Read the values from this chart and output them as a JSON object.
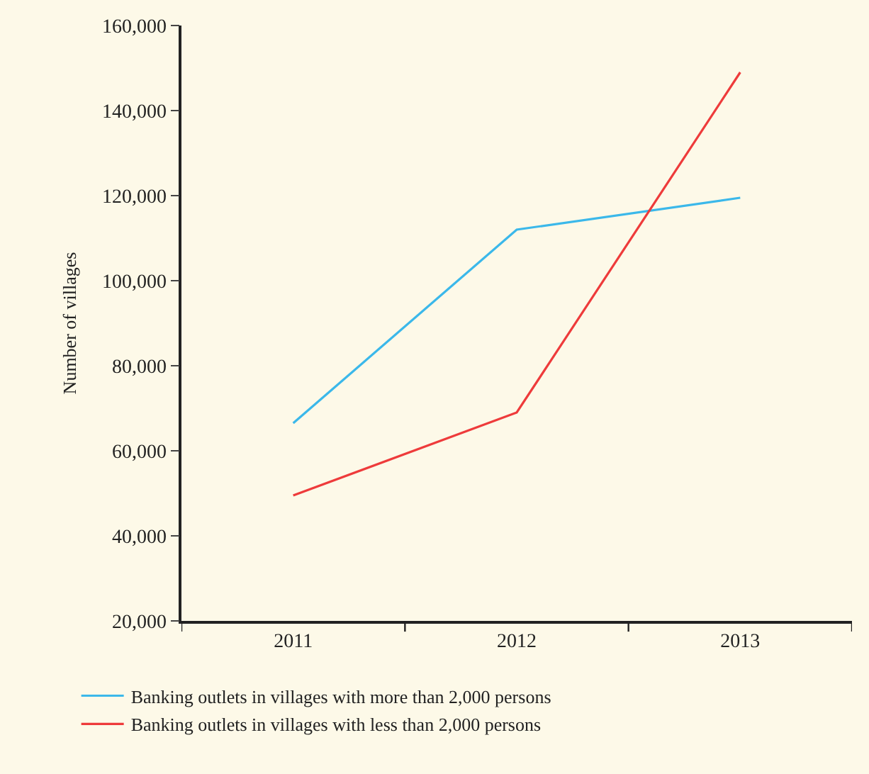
{
  "chart_data": {
    "type": "line",
    "ylabel": "Number of villages",
    "categories": [
      "2011",
      "2012",
      "2013"
    ],
    "series": [
      {
        "name": "Banking outlets in villages with more than 2,000 persons",
        "color": "#3bb8ea",
        "values": [
          66500,
          112000,
          119500
        ]
      },
      {
        "name": "Banking outlets in villages with less than 2,000 persons",
        "color": "#ee3b3b",
        "values": [
          49500,
          69000,
          149000
        ]
      }
    ],
    "ylim": [
      20000,
      160000
    ],
    "yticks": [
      {
        "value": 20000,
        "label": "20,000"
      },
      {
        "value": 40000,
        "label": "40,000"
      },
      {
        "value": 60000,
        "label": "60,000"
      },
      {
        "value": 80000,
        "label": "80,000"
      },
      {
        "value": 100000,
        "label": "100,000"
      },
      {
        "value": 120000,
        "label": "120,000"
      },
      {
        "value": 140000,
        "label": "140,000"
      },
      {
        "value": 160000,
        "label": "160,000"
      }
    ],
    "grid": false,
    "legend": "bottom",
    "marker": "none",
    "line_style": "solid"
  }
}
